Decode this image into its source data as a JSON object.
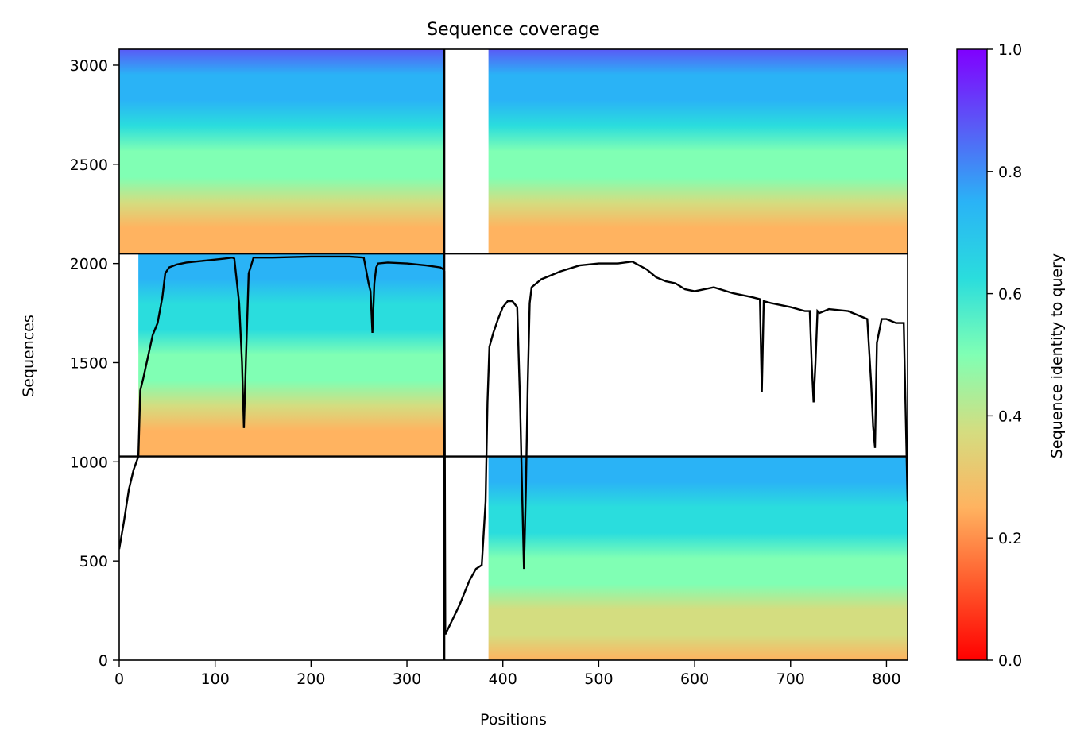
{
  "chart_data": {
    "type": "heatmap",
    "title": "Sequence coverage",
    "xlabel": "Positions",
    "ylabel": "Sequences",
    "colorbar_label": "Sequence identity to query",
    "colormap": "rainbow_r",
    "xlim": [
      0,
      822
    ],
    "ylim": [
      0,
      3080
    ],
    "xticks": [
      0,
      100,
      200,
      300,
      400,
      500,
      600,
      700,
      800
    ],
    "yticks": [
      0,
      500,
      1000,
      1500,
      2000,
      2500,
      3000
    ],
    "colorbar_ticks": [
      "0.0",
      "0.2",
      "0.4",
      "0.6",
      "0.8",
      "1.0"
    ],
    "colorbar_range": [
      0,
      1
    ],
    "chain_boundaries_x": [
      339
    ],
    "chain_boundaries_y": [
      1027,
      2050
    ],
    "blocks": [
      {
        "x": [
          0,
          339
        ],
        "y": [
          2050,
          3080
        ],
        "identity_top": 0.88,
        "identity_bottom": 0.22,
        "coverage_start": 0
      },
      {
        "x": [
          339,
          822
        ],
        "y": [
          2050,
          3080
        ],
        "identity_top": 0.88,
        "identity_bottom": 0.22,
        "coverage_start": 385
      },
      {
        "x": [
          0,
          339
        ],
        "y": [
          1027,
          2050
        ],
        "identity_top": 0.8,
        "identity_bottom": 0.24,
        "coverage_start": 20
      },
      {
        "x": [
          339,
          822
        ],
        "y": [
          0,
          1027
        ],
        "identity_top": 0.8,
        "identity_bottom": 0.25,
        "coverage_start": 385
      }
    ],
    "coverage_line": {
      "name": "coverage",
      "x": [
        0,
        5,
        10,
        15,
        20,
        22,
        25,
        30,
        35,
        40,
        45,
        48,
        52,
        60,
        70,
        80,
        90,
        100,
        110,
        118,
        120,
        125,
        128,
        130,
        132,
        135,
        140,
        150,
        160,
        200,
        240,
        255,
        260,
        262,
        264,
        266,
        268,
        270,
        280,
        300,
        320,
        335,
        338,
        339,
        340,
        345,
        355,
        365,
        372,
        378,
        382,
        384,
        386,
        390,
        395,
        400,
        405,
        410,
        415,
        418,
        420,
        422,
        424,
        426,
        428,
        430,
        440,
        450,
        460,
        480,
        500,
        520,
        535,
        550,
        560,
        570,
        580,
        590,
        600,
        610,
        620,
        640,
        660,
        668,
        670,
        672,
        680,
        700,
        715,
        720,
        722,
        724,
        726,
        728,
        730,
        740,
        760,
        780,
        784,
        786,
        788,
        790,
        795,
        800,
        810,
        818,
        822
      ],
      "y": [
        560,
        700,
        860,
        960,
        1027,
        1360,
        1420,
        1530,
        1640,
        1700,
        1830,
        1950,
        1980,
        1995,
        2005,
        2010,
        2015,
        2020,
        2025,
        2030,
        2025,
        1800,
        1500,
        1170,
        1500,
        1950,
        2030,
        2030,
        2030,
        2035,
        2035,
        2030,
        1900,
        1860,
        1650,
        1900,
        1980,
        2000,
        2005,
        2000,
        1990,
        1980,
        1970,
        1960,
        130,
        180,
        280,
        400,
        460,
        480,
        800,
        1300,
        1580,
        1650,
        1720,
        1780,
        1810,
        1810,
        1780,
        1300,
        860,
        460,
        860,
        1400,
        1800,
        1880,
        1920,
        1940,
        1960,
        1990,
        2000,
        2000,
        2010,
        1970,
        1930,
        1910,
        1900,
        1870,
        1860,
        1870,
        1880,
        1850,
        1830,
        1820,
        1350,
        1810,
        1800,
        1780,
        1760,
        1760,
        1500,
        1300,
        1500,
        1760,
        1750,
        1770,
        1760,
        1720,
        1400,
        1180,
        1070,
        1600,
        1720,
        1720,
        1700,
        1700,
        800
      ]
    }
  }
}
